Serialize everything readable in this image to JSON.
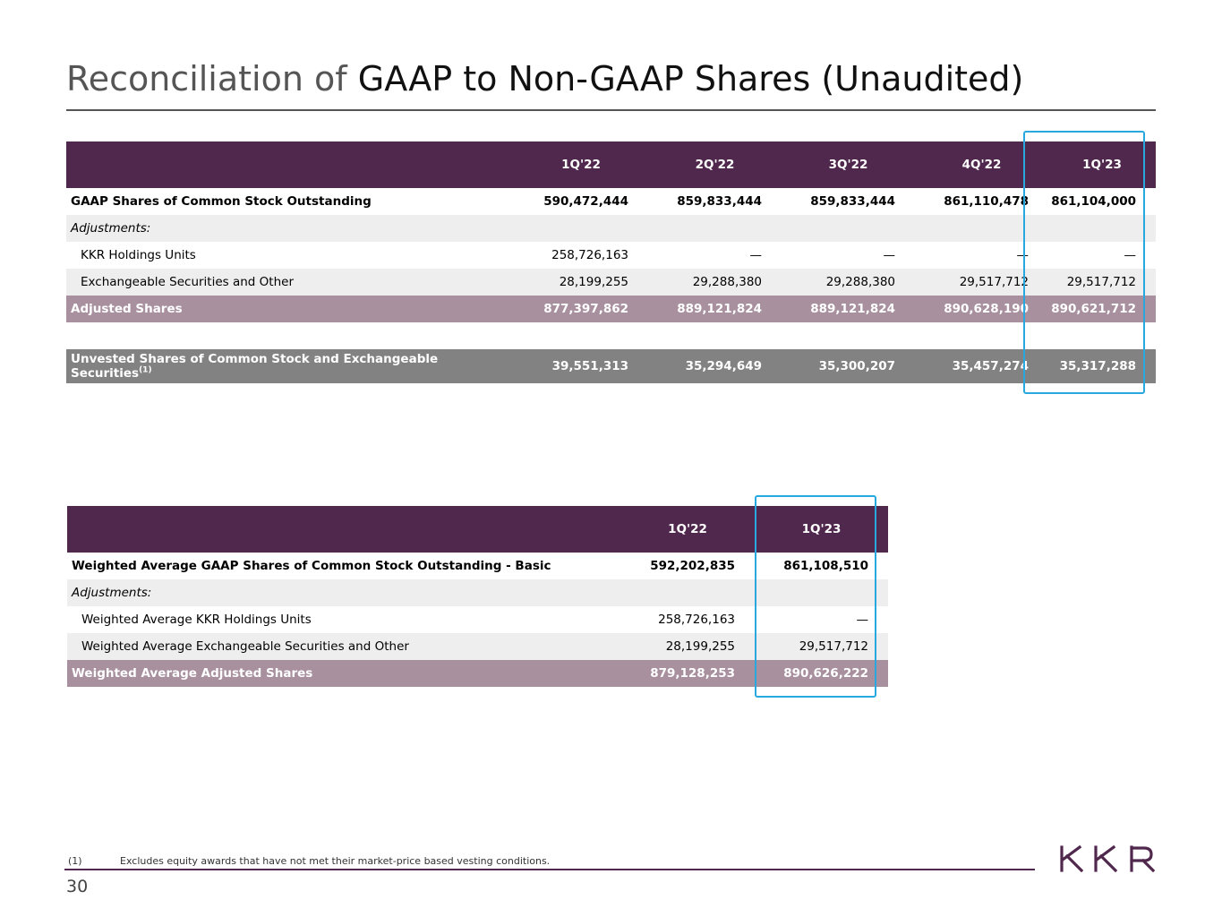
{
  "title": {
    "prefix": "Reconciliation of",
    "main": "GAAP to Non-GAAP Shares (Unaudited)"
  },
  "table1": {
    "columns": [
      "1Q'22",
      "2Q'22",
      "3Q'22",
      "4Q'22",
      "1Q'23"
    ],
    "rows": [
      {
        "label": "GAAP Shares of Common Stock Outstanding",
        "values": [
          "590,472,444",
          "859,833,444",
          "859,833,444",
          "861,110,478",
          "861,104,000"
        ]
      },
      {
        "label": "Adjustments:",
        "values": [
          "",
          "",
          "",
          "",
          ""
        ]
      },
      {
        "label": "KKR Holdings Units",
        "values": [
          "258,726,163",
          "—",
          "—",
          "—",
          "—"
        ]
      },
      {
        "label": "Exchangeable Securities and Other",
        "values": [
          "28,199,255",
          "29,288,380",
          "29,288,380",
          "29,517,712",
          "29,517,712"
        ]
      },
      {
        "label": "Adjusted Shares",
        "values": [
          "877,397,862",
          "889,121,824",
          "889,121,824",
          "890,628,190",
          "890,621,712"
        ]
      },
      {
        "label": "Unvested Shares of Common Stock and Exchangeable Securities",
        "footnote_ref": "(1)",
        "values": [
          "39,551,313",
          "35,294,649",
          "35,300,207",
          "35,457,274",
          "35,317,288"
        ]
      }
    ]
  },
  "table2": {
    "columns": [
      "1Q'22",
      "1Q'23"
    ],
    "rows": [
      {
        "label": "Weighted Average GAAP Shares of Common Stock Outstanding - Basic",
        "values": [
          "592,202,835",
          "861,108,510"
        ]
      },
      {
        "label": "Adjustments:",
        "values": [
          "",
          ""
        ]
      },
      {
        "label": "Weighted Average KKR Holdings Units",
        "values": [
          "258,726,163",
          "—"
        ]
      },
      {
        "label": "Weighted Average Exchangeable Securities and Other",
        "values": [
          "28,199,255",
          "29,517,712"
        ]
      },
      {
        "label": "Weighted Average Adjusted Shares",
        "values": [
          "879,128,253",
          "890,626,222"
        ]
      }
    ]
  },
  "footnote": {
    "marker": "(1)",
    "text": "Excludes equity awards that have not met their market-price based vesting conditions."
  },
  "page_number": "30",
  "logo": {
    "text": "KKR",
    "icon": "kkr-logo",
    "color": "#51284d"
  },
  "colors": {
    "header_bg": "#51284d",
    "total_bg": "#a8909f",
    "unvested_bg": "#828282",
    "alt_row_bg": "#eeeeee",
    "highlight": "#29a8e0"
  }
}
